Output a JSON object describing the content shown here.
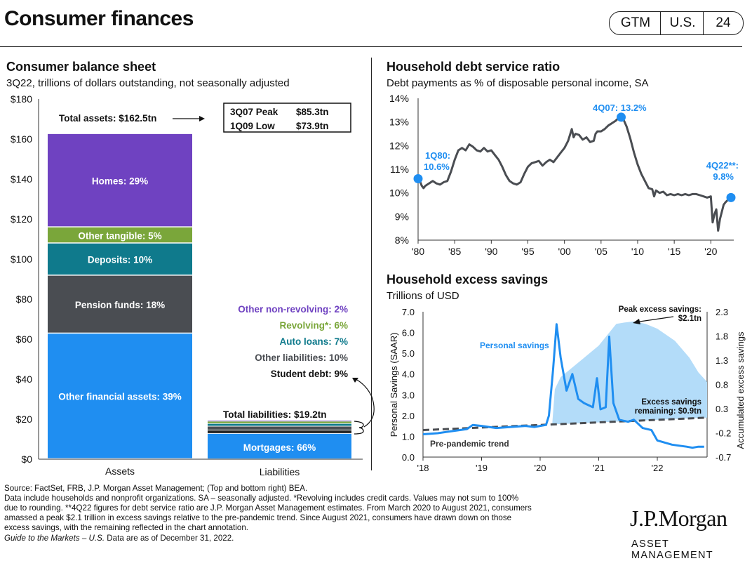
{
  "header": {
    "title": "Consumer finances",
    "tags": [
      "GTM",
      "U.S.",
      "24"
    ]
  },
  "left_panel": {
    "title": "Consumer balance sheet",
    "subtitle": "3Q22, trillions of dollars outstanding, not seasonally adjusted"
  },
  "right_top_panel": {
    "title": "Household debt service ratio",
    "subtitle": "Debt payments as % of disposable personal income, SA"
  },
  "right_bottom_panel": {
    "title": "Household excess savings",
    "subtitle": "Trillions of USD"
  },
  "footnotes": {
    "line1": "Source: FactSet, FRB, J.P. Morgan Asset Management; (Top and bottom right) BEA.",
    "line2": "Data include households and nonprofit organizations. SA – seasonally adjusted. *Revolving includes credit cards. Values may not sum to 100%",
    "line3": "due to rounding. **4Q22 figures for debt service ratio are J.P. Morgan Asset Management estimates. From March 2020 to August 2021, consumers",
    "line4": "amassed a peak $2.1 trillion in excess savings relative to the pre-pandemic trend. Since August 2021, consumers have drawn down on those",
    "line5": "excess savings, with the remaining reflected in the chart annotation.",
    "line6_italic": "Guide to the Markets – U.S.",
    "line6_rest": " Data are as of December 31, 2022."
  },
  "brand": {
    "name": "J.P.Morgan",
    "sub": "ASSET MANAGEMENT"
  },
  "chart_data": [
    {
      "type": "bar",
      "stacked": true,
      "categories": [
        "Assets",
        "Liabilities"
      ],
      "ylim": [
        0,
        180
      ],
      "yticks": [
        "$0",
        "$20",
        "$40",
        "$60",
        "$80",
        "$100",
        "$120",
        "$140",
        "$160",
        "$180"
      ],
      "ytick_values": [
        0,
        20,
        40,
        60,
        80,
        100,
        120,
        140,
        160,
        180
      ],
      "assets_total": 162.5,
      "assets_segments": [
        {
          "label": "Other financial assets: 39%",
          "share": 39,
          "color": "#1f8ef1"
        },
        {
          "label": "Pension funds: 18%",
          "share": 18,
          "color": "#4a4d52"
        },
        {
          "label": "Deposits: 10%",
          "share": 10,
          "color": "#0f7a8c"
        },
        {
          "label": "Other tangible: 5%",
          "share": 5,
          "color": "#7aa63a"
        },
        {
          "label": "Homes: 29%",
          "share": 29,
          "color": "#6f42c1"
        }
      ],
      "liabilities_total": 19.2,
      "liabilities_segments": [
        {
          "label": "Mortgages: 66%",
          "share": 66,
          "color": "#1f8ef1"
        },
        {
          "label": "Student debt: 9%",
          "share": 9,
          "color": "#222222"
        },
        {
          "label": "Other liabilities: 10%",
          "share": 10,
          "color": "#4a4d52"
        },
        {
          "label": "Auto loans: 7%",
          "share": 7,
          "color": "#0f7a8c"
        },
        {
          "label": "Revolving*: 6%",
          "share": 6,
          "color": "#7aa63a"
        },
        {
          "label": "Other non-revolving: 2%",
          "share": 2,
          "color": "#6f42c1"
        }
      ],
      "liability_labels": [
        {
          "text": "Other non-revolving:  2%",
          "color": "#6f42c1"
        },
        {
          "text": "Revolving*:  6%",
          "color": "#7aa63a"
        },
        {
          "text": "Auto loans: 7%",
          "color": "#0f7a8c"
        },
        {
          "text": "Other liabilities:  10%",
          "color": "#4a4d52"
        },
        {
          "text": "Student debt:  9%",
          "color": "#111111"
        }
      ],
      "annotations": {
        "total_assets": "Total assets: $162.5tn",
        "total_liabilities": "Total liabilities:  $19.2tn",
        "peak_label": "3Q07 Peak",
        "peak_value": "$85.3tn",
        "low_label": "1Q09 Low",
        "low_value": "$73.9tn"
      }
    },
    {
      "type": "line",
      "ylim": [
        8,
        14
      ],
      "yticks": [
        "8%",
        "9%",
        "10%",
        "11%",
        "12%",
        "13%",
        "14%"
      ],
      "xticks": [
        "'80",
        "'85",
        "'90",
        "'95",
        "'00",
        "'05",
        "'10",
        "'15",
        "'20"
      ],
      "xtick_years": [
        1980,
        1985,
        1990,
        1995,
        2000,
        2005,
        2010,
        2015,
        2020
      ],
      "series": [
        {
          "color": "#4a4d52",
          "points": [
            [
              1980.0,
              10.6
            ],
            [
              1980.25,
              10.5
            ],
            [
              1980.5,
              10.3
            ],
            [
              1980.75,
              10.2
            ],
            [
              1981.0,
              10.3
            ],
            [
              1981.5,
              10.4
            ],
            [
              1982.0,
              10.5
            ],
            [
              1982.5,
              10.4
            ],
            [
              1983.0,
              10.35
            ],
            [
              1983.5,
              10.45
            ],
            [
              1984.0,
              10.5
            ],
            [
              1984.5,
              10.9
            ],
            [
              1985.0,
              11.4
            ],
            [
              1985.5,
              11.8
            ],
            [
              1986.0,
              11.9
            ],
            [
              1986.5,
              11.8
            ],
            [
              1987.0,
              12.05
            ],
            [
              1987.5,
              11.95
            ],
            [
              1988.0,
              11.8
            ],
            [
              1988.5,
              11.75
            ],
            [
              1989.0,
              11.9
            ],
            [
              1989.5,
              11.75
            ],
            [
              1990.0,
              11.8
            ],
            [
              1990.5,
              11.6
            ],
            [
              1991.0,
              11.4
            ],
            [
              1991.5,
              11.1
            ],
            [
              1992.0,
              10.75
            ],
            [
              1992.5,
              10.5
            ],
            [
              1993.0,
              10.4
            ],
            [
              1993.5,
              10.35
            ],
            [
              1994.0,
              10.45
            ],
            [
              1994.5,
              10.8
            ],
            [
              1995.0,
              11.1
            ],
            [
              1995.5,
              11.25
            ],
            [
              1996.0,
              11.3
            ],
            [
              1996.5,
              11.35
            ],
            [
              1997.0,
              11.15
            ],
            [
              1997.5,
              11.3
            ],
            [
              1998.0,
              11.4
            ],
            [
              1998.5,
              11.3
            ],
            [
              1999.0,
              11.5
            ],
            [
              1999.5,
              11.7
            ],
            [
              2000.0,
              11.9
            ],
            [
              2000.5,
              12.2
            ],
            [
              2001.0,
              12.7
            ],
            [
              2001.25,
              12.35
            ],
            [
              2001.5,
              12.5
            ],
            [
              2002.0,
              12.45
            ],
            [
              2002.5,
              12.25
            ],
            [
              2003.0,
              12.35
            ],
            [
              2003.5,
              12.15
            ],
            [
              2004.0,
              12.2
            ],
            [
              2004.25,
              12.5
            ],
            [
              2004.5,
              12.6
            ],
            [
              2005.0,
              12.6
            ],
            [
              2005.5,
              12.7
            ],
            [
              2006.0,
              12.85
            ],
            [
              2006.5,
              12.95
            ],
            [
              2007.0,
              13.05
            ],
            [
              2007.5,
              13.2
            ],
            [
              2008.0,
              13.15
            ],
            [
              2008.5,
              12.8
            ],
            [
              2009.0,
              12.3
            ],
            [
              2009.5,
              11.7
            ],
            [
              2010.0,
              11.2
            ],
            [
              2010.5,
              10.8
            ],
            [
              2011.0,
              10.5
            ],
            [
              2011.5,
              10.2
            ],
            [
              2012.0,
              10.15
            ],
            [
              2012.25,
              9.85
            ],
            [
              2012.5,
              10.1
            ],
            [
              2013.0,
              10.0
            ],
            [
              2013.5,
              10.05
            ],
            [
              2014.0,
              9.9
            ],
            [
              2014.5,
              9.95
            ],
            [
              2015.0,
              9.9
            ],
            [
              2015.5,
              9.95
            ],
            [
              2016.0,
              9.9
            ],
            [
              2016.5,
              9.95
            ],
            [
              2017.0,
              9.9
            ],
            [
              2017.5,
              9.95
            ],
            [
              2018.0,
              9.95
            ],
            [
              2018.5,
              9.9
            ],
            [
              2019.0,
              9.85
            ],
            [
              2019.5,
              9.8
            ],
            [
              2020.0,
              9.85
            ],
            [
              2020.25,
              8.75
            ],
            [
              2020.5,
              9.1
            ],
            [
              2020.75,
              9.3
            ],
            [
              2021.0,
              8.4
            ],
            [
              2021.25,
              8.9
            ],
            [
              2021.5,
              9.2
            ],
            [
              2021.75,
              9.5
            ],
            [
              2022.0,
              9.6
            ],
            [
              2022.5,
              9.75
            ],
            [
              2022.75,
              9.8
            ]
          ]
        }
      ],
      "highlights": [
        {
          "x": 1980.0,
          "y": 10.6,
          "label_line1": "1Q80:",
          "label_line2": "10.6%"
        },
        {
          "x": 2007.75,
          "y": 13.2,
          "label_line1": "4Q07:  13.2%",
          "label_line2": ""
        },
        {
          "x": 2022.75,
          "y": 9.8,
          "label_line1": "4Q22**:",
          "label_line2": "9.8%"
        }
      ],
      "highlight_color": "#1f8ef1"
    },
    {
      "type": "area",
      "xlim": [
        2018.0,
        2022.85
      ],
      "xticks": [
        "'18",
        "'19",
        "'20",
        "'21",
        "'22"
      ],
      "xtick_years": [
        2018,
        2019,
        2020,
        2021,
        2022
      ],
      "ylim_left": [
        0,
        7
      ],
      "yticks_left": [
        "0.0",
        "1.0",
        "2.0",
        "3.0",
        "4.0",
        "5.0",
        "6.0",
        "7.0"
      ],
      "ylabel_left": "Personal Savings (SAAR)",
      "ylim_right": [
        -0.7,
        2.3
      ],
      "yticks_right": [
        "-0.7",
        "-0.2",
        "0.3",
        "0.8",
        "1.3",
        "1.8",
        "2.3"
      ],
      "ylabel_right": "Accumulated excess savings",
      "series": [
        {
          "name": "Personal savings",
          "color": "#1f8ef1",
          "axis": "left",
          "points": [
            [
              2018.0,
              1.1
            ],
            [
              2018.25,
              1.15
            ],
            [
              2018.5,
              1.25
            ],
            [
              2018.75,
              1.35
            ],
            [
              2018.85,
              1.55
            ],
            [
              2019.0,
              1.5
            ],
            [
              2019.25,
              1.4
            ],
            [
              2019.5,
              1.45
            ],
            [
              2019.75,
              1.5
            ],
            [
              2019.9,
              1.45
            ],
            [
              2020.0,
              1.5
            ],
            [
              2020.1,
              1.55
            ],
            [
              2020.15,
              2.0
            ],
            [
              2020.22,
              4.2
            ],
            [
              2020.28,
              6.4
            ],
            [
              2020.35,
              4.8
            ],
            [
              2020.45,
              3.2
            ],
            [
              2020.55,
              4.0
            ],
            [
              2020.65,
              2.8
            ],
            [
              2020.75,
              2.6
            ],
            [
              2020.9,
              2.4
            ],
            [
              2020.97,
              3.8
            ],
            [
              2021.03,
              2.3
            ],
            [
              2021.12,
              2.4
            ],
            [
              2021.18,
              5.8
            ],
            [
              2021.25,
              2.6
            ],
            [
              2021.35,
              1.8
            ],
            [
              2021.5,
              1.7
            ],
            [
              2021.6,
              1.8
            ],
            [
              2021.75,
              1.4
            ],
            [
              2021.9,
              1.3
            ],
            [
              2022.0,
              0.8
            ],
            [
              2022.25,
              0.6
            ],
            [
              2022.5,
              0.5
            ],
            [
              2022.6,
              0.45
            ],
            [
              2022.7,
              0.5
            ],
            [
              2022.8,
              0.5
            ]
          ]
        },
        {
          "name": "Pre-pandemic trend",
          "color": "#4a4d52",
          "axis": "left",
          "dashed": true,
          "points": [
            [
              2018.0,
              1.3
            ],
            [
              2022.85,
              1.9
            ]
          ]
        },
        {
          "name": "Accumulated excess savings",
          "color": "#b3dcf9",
          "axis": "right",
          "points": [
            [
              2020.2,
              -0.12
            ],
            [
              2020.25,
              0.7
            ],
            [
              2020.35,
              0.95
            ],
            [
              2020.5,
              1.1
            ],
            [
              2020.75,
              1.35
            ],
            [
              2021.0,
              1.6
            ],
            [
              2021.2,
              1.9
            ],
            [
              2021.3,
              2.05
            ],
            [
              2021.45,
              2.08
            ],
            [
              2021.6,
              2.1
            ],
            [
              2021.8,
              2.05
            ],
            [
              2022.0,
              1.95
            ],
            [
              2022.3,
              1.7
            ],
            [
              2022.55,
              1.35
            ],
            [
              2022.7,
              1.05
            ],
            [
              2022.85,
              0.85
            ]
          ]
        }
      ],
      "annotations": {
        "series_label": "Personal savings",
        "trend_label": "Pre-pandemic trend",
        "peak_line1": "Peak excess savings:",
        "peak_line2": "$2.1tn",
        "remaining_line1": "Excess savings",
        "remaining_line2": "remaining: $0.9tn"
      }
    }
  ]
}
